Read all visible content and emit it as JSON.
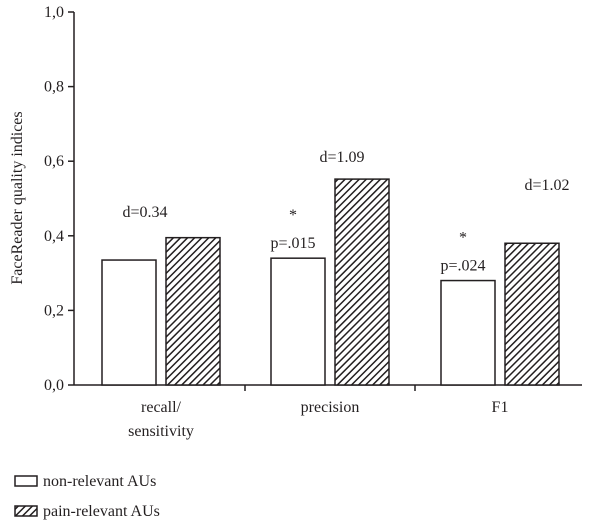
{
  "chart_data": {
    "type": "bar",
    "ylabel": "FaceReader quality indices",
    "ylim": [
      0,
      1
    ],
    "yticks": [
      "0,0",
      "0,2",
      "0,4",
      "0,6",
      "0,8",
      "1,0"
    ],
    "yticks_values": [
      0,
      0.2,
      0.4,
      0.6,
      0.8,
      1.0
    ],
    "categories": [
      [
        "recall/",
        "sensitivity"
      ],
      [
        "precision"
      ],
      [
        "F1"
      ]
    ],
    "series": [
      {
        "name": "non-relevant AUs",
        "values": [
          0.335,
          0.34,
          0.28
        ],
        "fill": "#ffffff",
        "pattern": "none"
      },
      {
        "name": "pain-relevant AUs",
        "values": [
          0.395,
          0.552,
          0.38
        ],
        "fill": "#231f20",
        "pattern": "diagonal-hatch"
      }
    ],
    "effect_sizes": [
      "d=0.34",
      "d=1.09",
      "d=1.02"
    ],
    "significance": [
      null,
      {
        "star": "*",
        "p": "p=.015"
      },
      {
        "star": "*",
        "p": "p=.024"
      }
    ],
    "legend_position": "bottom-left",
    "grid": false
  }
}
